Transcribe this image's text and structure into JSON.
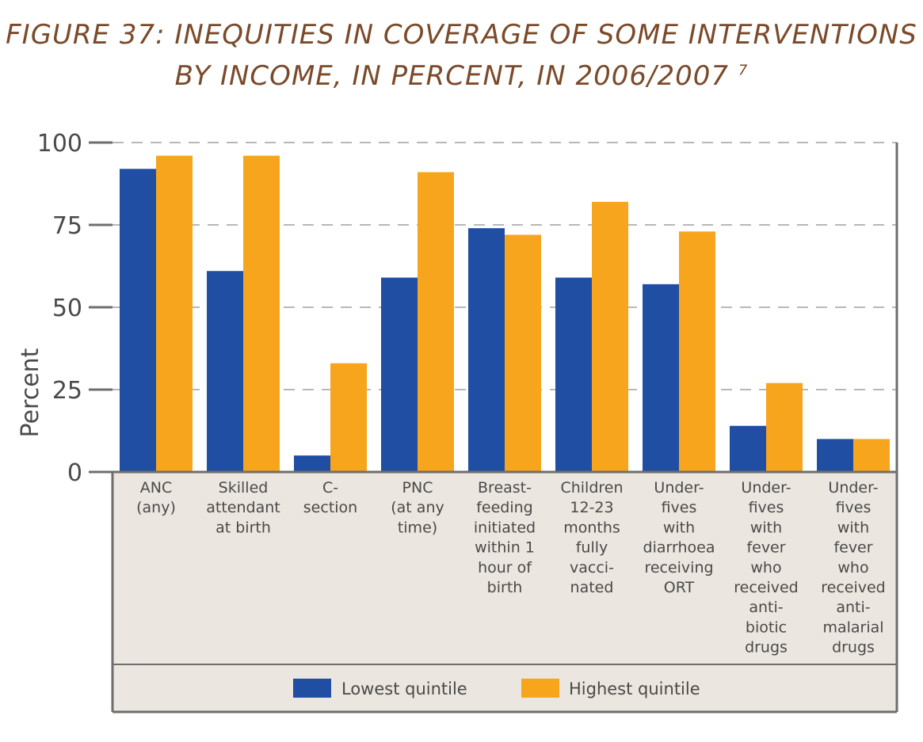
{
  "figure": {
    "title_line1": "FIGURE 37: INEQUITIES IN COVERAGE OF SOME INTERVENTIONS",
    "title_line2": "BY INCOME, IN PERCENT, IN 2006/2007",
    "footnote_ref": "7"
  },
  "colors": {
    "lowest": "#1f4ea3",
    "highest": "#f7a51d",
    "panel": "#ebe6df",
    "border": "#6e6e6e",
    "grid": "#b8b8b8",
    "text": "#4a4a4a"
  },
  "chart_data": {
    "type": "bar",
    "ylabel": "Percent",
    "ylim": [
      0,
      100
    ],
    "yticks": [
      "0",
      "25",
      "50",
      "75",
      "100"
    ],
    "grid": true,
    "legend_position": "bottom",
    "categories": [
      [
        "ANC",
        "(any)"
      ],
      [
        "Skilled",
        "attendant",
        "at birth"
      ],
      [
        "C-",
        "section"
      ],
      [
        "PNC",
        "(at any",
        "time)"
      ],
      [
        "Breast-",
        "feeding",
        "initiated",
        "within 1",
        "hour of",
        "birth"
      ],
      [
        "Children",
        "12-23",
        "months",
        "fully",
        "vacci-",
        "nated"
      ],
      [
        "Under-",
        "fives",
        "with",
        "diarrhoea",
        "receiving",
        "ORT"
      ],
      [
        "Under-",
        "fives",
        "with",
        "fever",
        "who",
        "received",
        "anti-",
        "biotic",
        "drugs"
      ],
      [
        "Under-",
        "fives",
        "with",
        "fever",
        "who",
        "received",
        "anti-",
        "malarial",
        "drugs"
      ]
    ],
    "series": [
      {
        "name": "Lowest quintile",
        "values": [
          92,
          61,
          5,
          59,
          74,
          59,
          57,
          14,
          10
        ]
      },
      {
        "name": "Highest quintile",
        "values": [
          96,
          96,
          33,
          91,
          72,
          82,
          73,
          27,
          10
        ]
      }
    ]
  }
}
